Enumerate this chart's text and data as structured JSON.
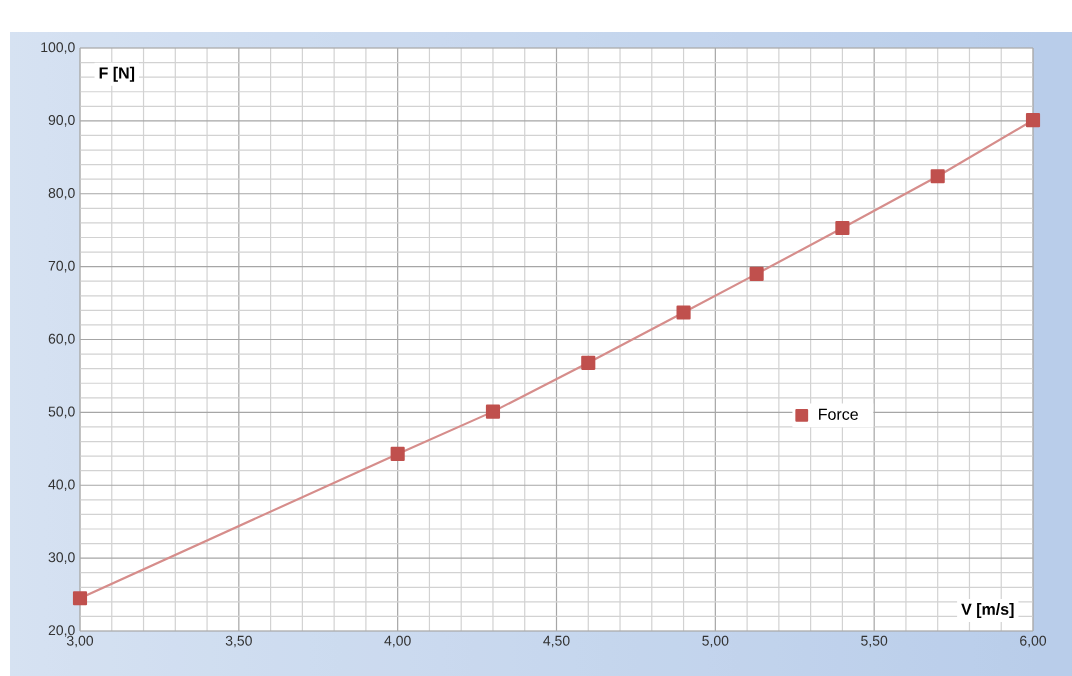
{
  "chart_data": {
    "type": "line",
    "xlabel": "V [m/s]",
    "ylabel": "F [N]",
    "x": [
      3.0,
      4.0,
      4.3,
      4.6,
      4.9,
      5.13,
      5.4,
      5.7,
      6.0
    ],
    "series": [
      {
        "name": "Force",
        "color": "#c0504d",
        "values": [
          24.5,
          44.3,
          50.1,
          56.8,
          63.7,
          69.0,
          75.3,
          82.4,
          90.1
        ]
      }
    ],
    "xlim": [
      3,
      6
    ],
    "ylim": [
      20,
      100
    ],
    "xticks": [
      {
        "value": 3,
        "label": "3,00"
      },
      {
        "value": 3.5,
        "label": "3,50"
      },
      {
        "value": 4,
        "label": "4,00"
      },
      {
        "value": 4.5,
        "label": "4,50"
      },
      {
        "value": 5,
        "label": "5,00"
      },
      {
        "value": 5.5,
        "label": "5,50"
      },
      {
        "value": 6,
        "label": "6,00"
      }
    ],
    "yticks": [
      {
        "value": 20,
        "label": "20,0"
      },
      {
        "value": 30,
        "label": "30,0"
      },
      {
        "value": 40,
        "label": "40,0"
      },
      {
        "value": 50,
        "label": "50,0"
      },
      {
        "value": 60,
        "label": "60,0"
      },
      {
        "value": 70,
        "label": "70,0"
      },
      {
        "value": 80,
        "label": "80,0"
      },
      {
        "value": 90,
        "label": "90,0"
      },
      {
        "value": 100,
        "label": "100,0"
      }
    ],
    "grid": true,
    "legend": "right",
    "marker": "square",
    "line_style": "solid"
  }
}
